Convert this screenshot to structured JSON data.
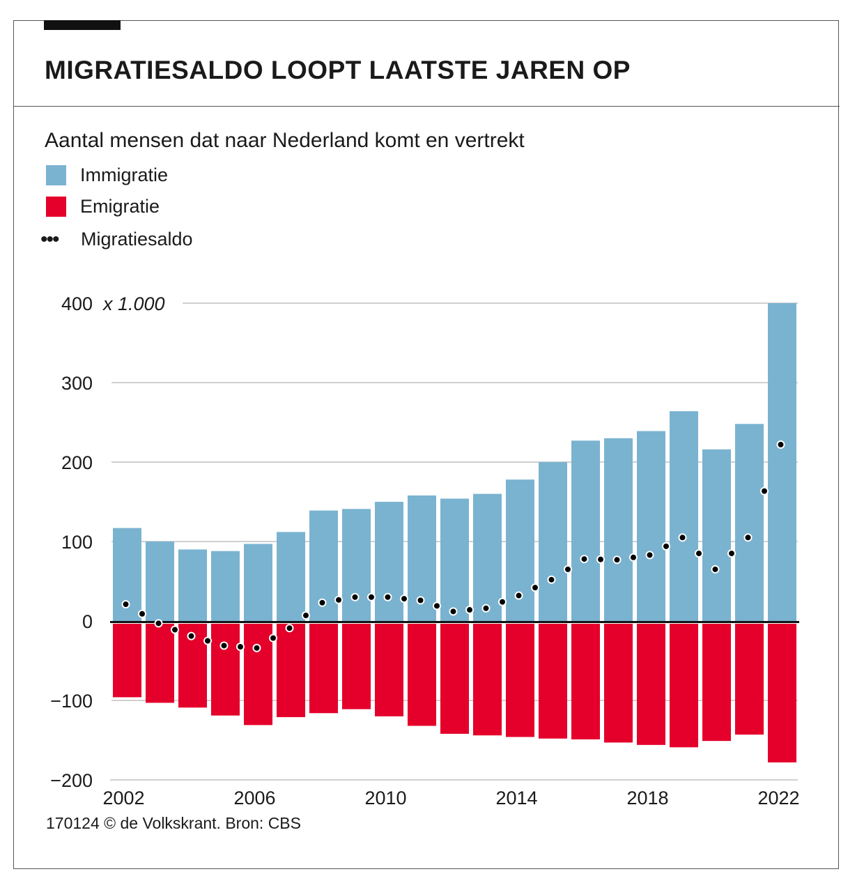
{
  "title": "MIGRATIESALDO LOOPT LAATSTE JAREN OP",
  "subtitle": "Aantal mensen dat naar Nederland komt en vertrekt",
  "source": "170124 © de Volkskrant. Bron: CBS",
  "colors": {
    "immigratie": "#7ab3d0",
    "emigratie": "#e4002b",
    "saldo": "#000000"
  },
  "chart_data": {
    "type": "bar",
    "unit_label": "x 1.000",
    "categories": [
      2002,
      2003,
      2004,
      2005,
      2006,
      2007,
      2008,
      2009,
      2010,
      2011,
      2012,
      2013,
      2014,
      2015,
      2016,
      2017,
      2018,
      2019,
      2020,
      2021,
      2022
    ],
    "series": [
      {
        "name": "Immigratie",
        "type": "bar",
        "values": [
          117,
          100,
          90,
          88,
          97,
          112,
          139,
          141,
          150,
          158,
          154,
          160,
          178,
          200,
          227,
          230,
          239,
          264,
          216,
          248,
          400
        ]
      },
      {
        "name": "Emigratie",
        "type": "bar",
        "values": [
          -96,
          -103,
          -109,
          -119,
          -131,
          -121,
          -116,
          -111,
          -120,
          -132,
          -142,
          -144,
          -146,
          -148,
          -149,
          -153,
          -156,
          -159,
          -151,
          -143,
          -178
        ]
      },
      {
        "name": "Migratiesaldo",
        "type": "dotted-line",
        "values": [
          21,
          -3,
          -19,
          -31,
          -34,
          -9,
          23,
          30,
          30,
          26,
          12,
          16,
          32,
          52,
          78,
          77,
          83,
          105,
          65,
          105,
          222
        ]
      }
    ],
    "ylim": [
      -200,
      400
    ],
    "yticks": [
      "−200",
      "−100",
      "0",
      "100",
      "200",
      "300",
      "400"
    ],
    "yticks_values": [
      -200,
      -100,
      0,
      100,
      200,
      300,
      400
    ],
    "xticks": [
      "2002",
      "2006",
      "2010",
      "2014",
      "2018",
      "2022"
    ],
    "grid": true,
    "legend": "top-left"
  }
}
